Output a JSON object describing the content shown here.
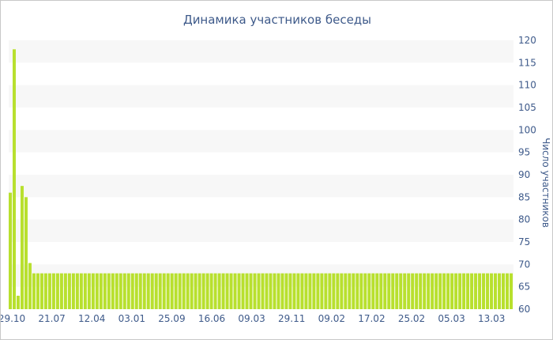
{
  "chart_data": {
    "type": "bar",
    "title": "Динамика участников беседы",
    "ylabel": "Число участников",
    "xlabel": "",
    "ylim": [
      60,
      120
    ],
    "yticks": [
      60,
      65,
      70,
      75,
      80,
      85,
      90,
      95,
      100,
      105,
      110,
      115,
      120
    ],
    "yaxis_position": "right",
    "grid": "alternating horizontal bands",
    "bar_color": "#b8e02e",
    "band_color": "#f7f7f7",
    "text_color": "#3e5a8a",
    "x_tick_labels": [
      "29.10",
      "21.07",
      "12.04",
      "03.01",
      "25.09",
      "16.06",
      "09.03",
      "29.11",
      "09.02",
      "17.02",
      "25.02",
      "05.03",
      "13.03"
    ],
    "values": [
      86,
      118,
      63,
      87.5,
      85,
      70.3,
      68,
      68,
      68,
      68,
      68,
      68,
      68,
      68,
      68,
      68,
      68,
      68,
      68,
      68,
      68,
      68,
      68,
      68,
      68,
      68,
      68,
      68,
      68,
      68,
      68,
      68,
      68,
      68,
      68,
      68,
      68,
      68,
      68,
      68,
      68,
      68,
      68,
      68,
      68,
      68,
      68,
      68,
      68,
      68,
      68,
      68,
      68,
      68,
      68,
      68,
      68,
      68,
      68,
      68,
      68,
      68,
      68,
      68,
      68,
      68,
      68,
      68,
      68,
      68,
      68,
      68,
      68,
      68,
      68,
      68,
      68,
      68,
      68,
      68,
      68,
      68,
      68,
      68,
      68,
      68,
      68,
      68,
      68,
      68,
      68,
      68,
      68,
      68,
      68,
      68,
      68,
      68,
      68,
      68,
      68,
      68,
      68,
      68,
      68,
      68,
      68,
      68,
      68,
      68,
      68,
      68,
      68,
      68,
      68,
      68,
      68,
      68,
      68,
      68,
      68,
      68,
      68,
      68,
      68,
      68,
      68,
      68
    ]
  }
}
